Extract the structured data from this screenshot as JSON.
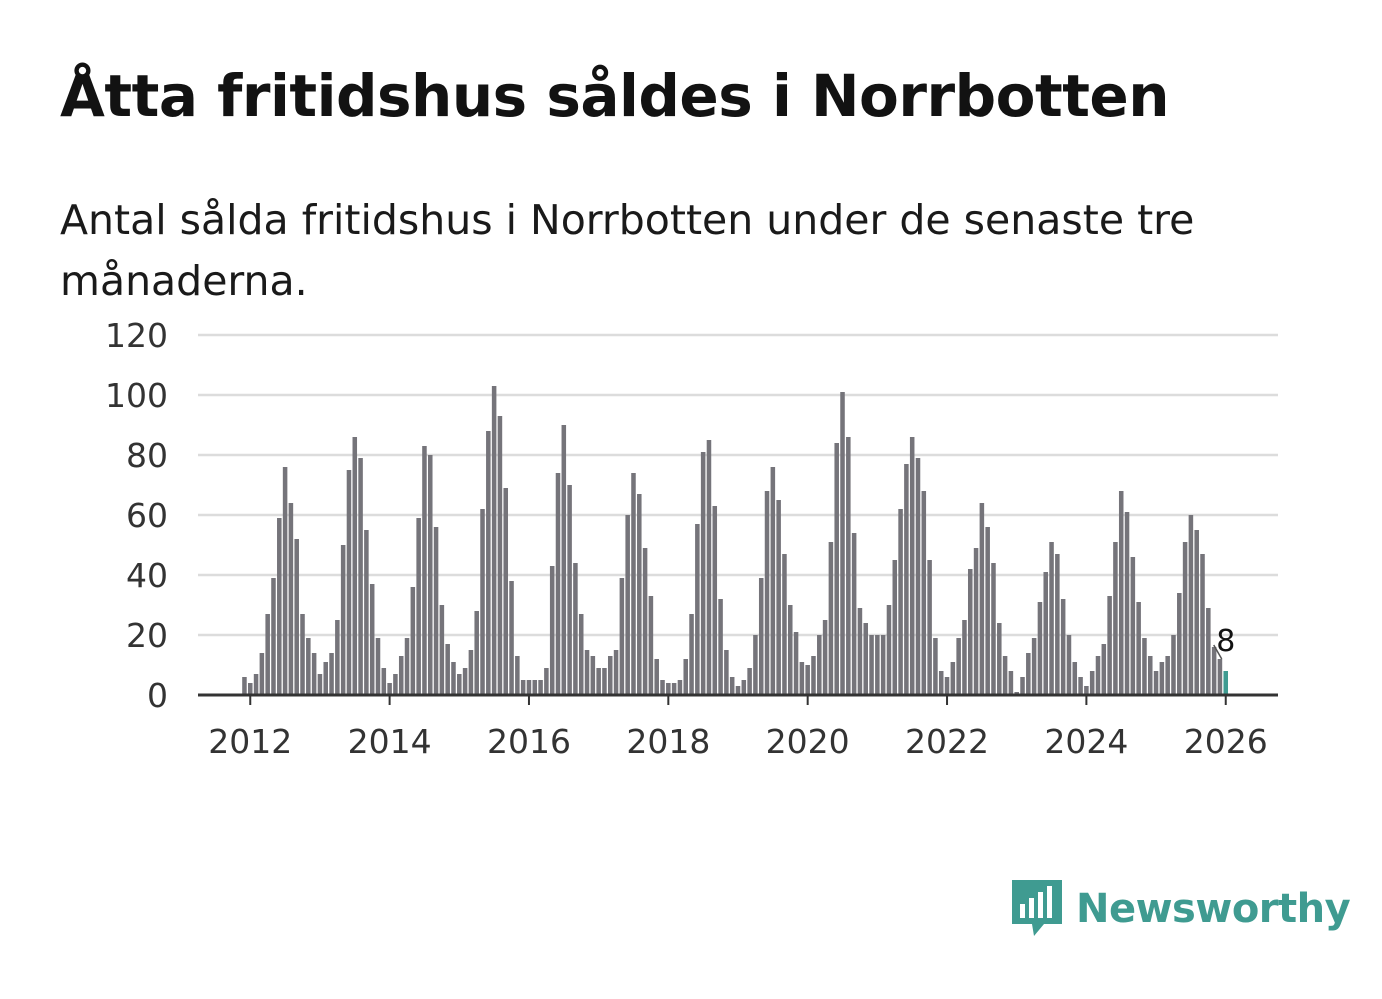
{
  "title": "Åtta fritidshus såldes i Norrbotten",
  "subtitle": "Antal sålda fritidshus i Norrbotten under de senaste tre månaderna.",
  "brand": {
    "name": "Newsworthy",
    "icon": "newsworthy-chart-icon",
    "color": "#3f9b91"
  },
  "chart_data": {
    "type": "bar",
    "title": "Åtta fritidshus såldes i Norrbotten",
    "subtitle": "Antal sålda fritidshus i Norrbotten under de senaste tre månaderna.",
    "xlabel": "",
    "ylabel": "",
    "ylim": [
      0,
      120
    ],
    "yticks": [
      0,
      20,
      40,
      60,
      80,
      100,
      120
    ],
    "xlim": [
      "2011-04",
      "2026-10"
    ],
    "xticks": [
      "2012",
      "2014",
      "2016",
      "2018",
      "2020",
      "2022",
      "2024",
      "2026"
    ],
    "grid": true,
    "bar_color": "#75747a",
    "highlight_color": "#3f9b91",
    "highlight_label": "8",
    "series": [
      {
        "x": [
          "2011-12",
          "2012-01",
          "2012-02",
          "2012-03",
          "2012-04",
          "2012-05",
          "2012-06",
          "2012-07",
          "2012-08",
          "2012-09",
          "2012-10",
          "2012-11",
          "2012-12",
          "2013-01",
          "2013-02",
          "2013-03",
          "2013-04",
          "2013-05",
          "2013-06",
          "2013-07",
          "2013-08",
          "2013-09",
          "2013-10",
          "2013-11",
          "2013-12",
          "2014-01",
          "2014-02",
          "2014-03",
          "2014-04",
          "2014-05",
          "2014-06",
          "2014-07",
          "2014-08",
          "2014-09",
          "2014-10",
          "2014-11",
          "2014-12",
          "2015-01",
          "2015-02",
          "2015-03",
          "2015-04",
          "2015-05",
          "2015-06",
          "2015-07",
          "2015-08",
          "2015-09",
          "2015-10",
          "2015-11",
          "2015-12",
          "2016-01",
          "2016-02",
          "2016-03",
          "2016-04",
          "2016-05",
          "2016-06",
          "2016-07",
          "2016-08",
          "2016-09",
          "2016-10",
          "2016-11",
          "2016-12",
          "2017-01",
          "2017-02",
          "2017-03",
          "2017-04",
          "2017-05",
          "2017-06",
          "2017-07",
          "2017-08",
          "2017-09",
          "2017-10",
          "2017-11",
          "2017-12",
          "2018-01",
          "2018-02",
          "2018-03",
          "2018-04",
          "2018-05",
          "2018-06",
          "2018-07",
          "2018-08",
          "2018-09",
          "2018-10",
          "2018-11",
          "2018-12",
          "2019-01",
          "2019-02",
          "2019-03",
          "2019-04",
          "2019-05",
          "2019-06",
          "2019-07",
          "2019-08",
          "2019-09",
          "2019-10",
          "2019-11",
          "2019-12",
          "2020-01",
          "2020-02",
          "2020-03",
          "2020-04",
          "2020-05",
          "2020-06",
          "2020-07",
          "2020-08",
          "2020-09",
          "2020-10",
          "2020-11",
          "2020-12",
          "2021-01",
          "2021-02",
          "2021-03",
          "2021-04",
          "2021-05",
          "2021-06",
          "2021-07",
          "2021-08",
          "2021-09",
          "2021-10",
          "2021-11",
          "2021-12",
          "2022-01",
          "2022-02",
          "2022-03",
          "2022-04",
          "2022-05",
          "2022-06",
          "2022-07",
          "2022-08",
          "2022-09",
          "2022-10",
          "2022-11",
          "2022-12",
          "2023-01",
          "2023-02",
          "2023-03",
          "2023-04",
          "2023-05",
          "2023-06",
          "2023-07",
          "2023-08",
          "2023-09",
          "2023-10",
          "2023-11",
          "2023-12",
          "2024-01",
          "2024-02",
          "2024-03",
          "2024-04",
          "2024-05",
          "2024-06",
          "2024-07",
          "2024-08",
          "2024-09",
          "2024-10",
          "2024-11",
          "2024-12",
          "2025-01",
          "2025-02",
          "2025-03",
          "2025-04",
          "2025-05",
          "2025-06",
          "2025-07",
          "2025-08",
          "2025-09",
          "2025-10",
          "2025-11",
          "2025-12",
          "2026-01"
        ],
        "values": [
          6,
          4,
          7,
          14,
          27,
          39,
          59,
          76,
          64,
          52,
          27,
          19,
          14,
          7,
          11,
          14,
          25,
          50,
          75,
          86,
          79,
          55,
          37,
          19,
          9,
          4,
          7,
          13,
          19,
          36,
          59,
          83,
          80,
          56,
          30,
          17,
          11,
          7,
          9,
          15,
          28,
          62,
          88,
          103,
          93,
          69,
          38,
          13,
          5,
          5,
          5,
          5,
          9,
          43,
          74,
          90,
          70,
          44,
          27,
          15,
          13,
          9,
          9,
          13,
          15,
          39,
          60,
          74,
          67,
          49,
          33,
          12,
          5,
          4,
          4,
          5,
          12,
          27,
          57,
          81,
          85,
          63,
          32,
          15,
          6,
          3,
          5,
          9,
          20,
          39,
          68,
          76,
          65,
          47,
          30,
          21,
          11,
          10,
          13,
          20,
          25,
          51,
          84,
          101,
          86,
          54,
          29,
          24,
          20,
          20,
          20,
          30,
          45,
          62,
          77,
          86,
          79,
          68,
          45,
          19,
          8,
          6,
          11,
          19,
          25,
          42,
          49,
          64,
          56,
          44,
          24,
          13,
          8,
          1,
          6,
          14,
          19,
          31,
          41,
          51,
          47,
          32,
          20,
          11,
          6,
          3,
          8,
          13,
          17,
          33,
          51,
          68,
          61,
          46,
          31,
          19,
          13,
          8,
          11,
          13,
          20,
          34,
          51,
          60,
          55,
          47,
          29,
          16,
          12,
          8
        ]
      }
    ]
  }
}
